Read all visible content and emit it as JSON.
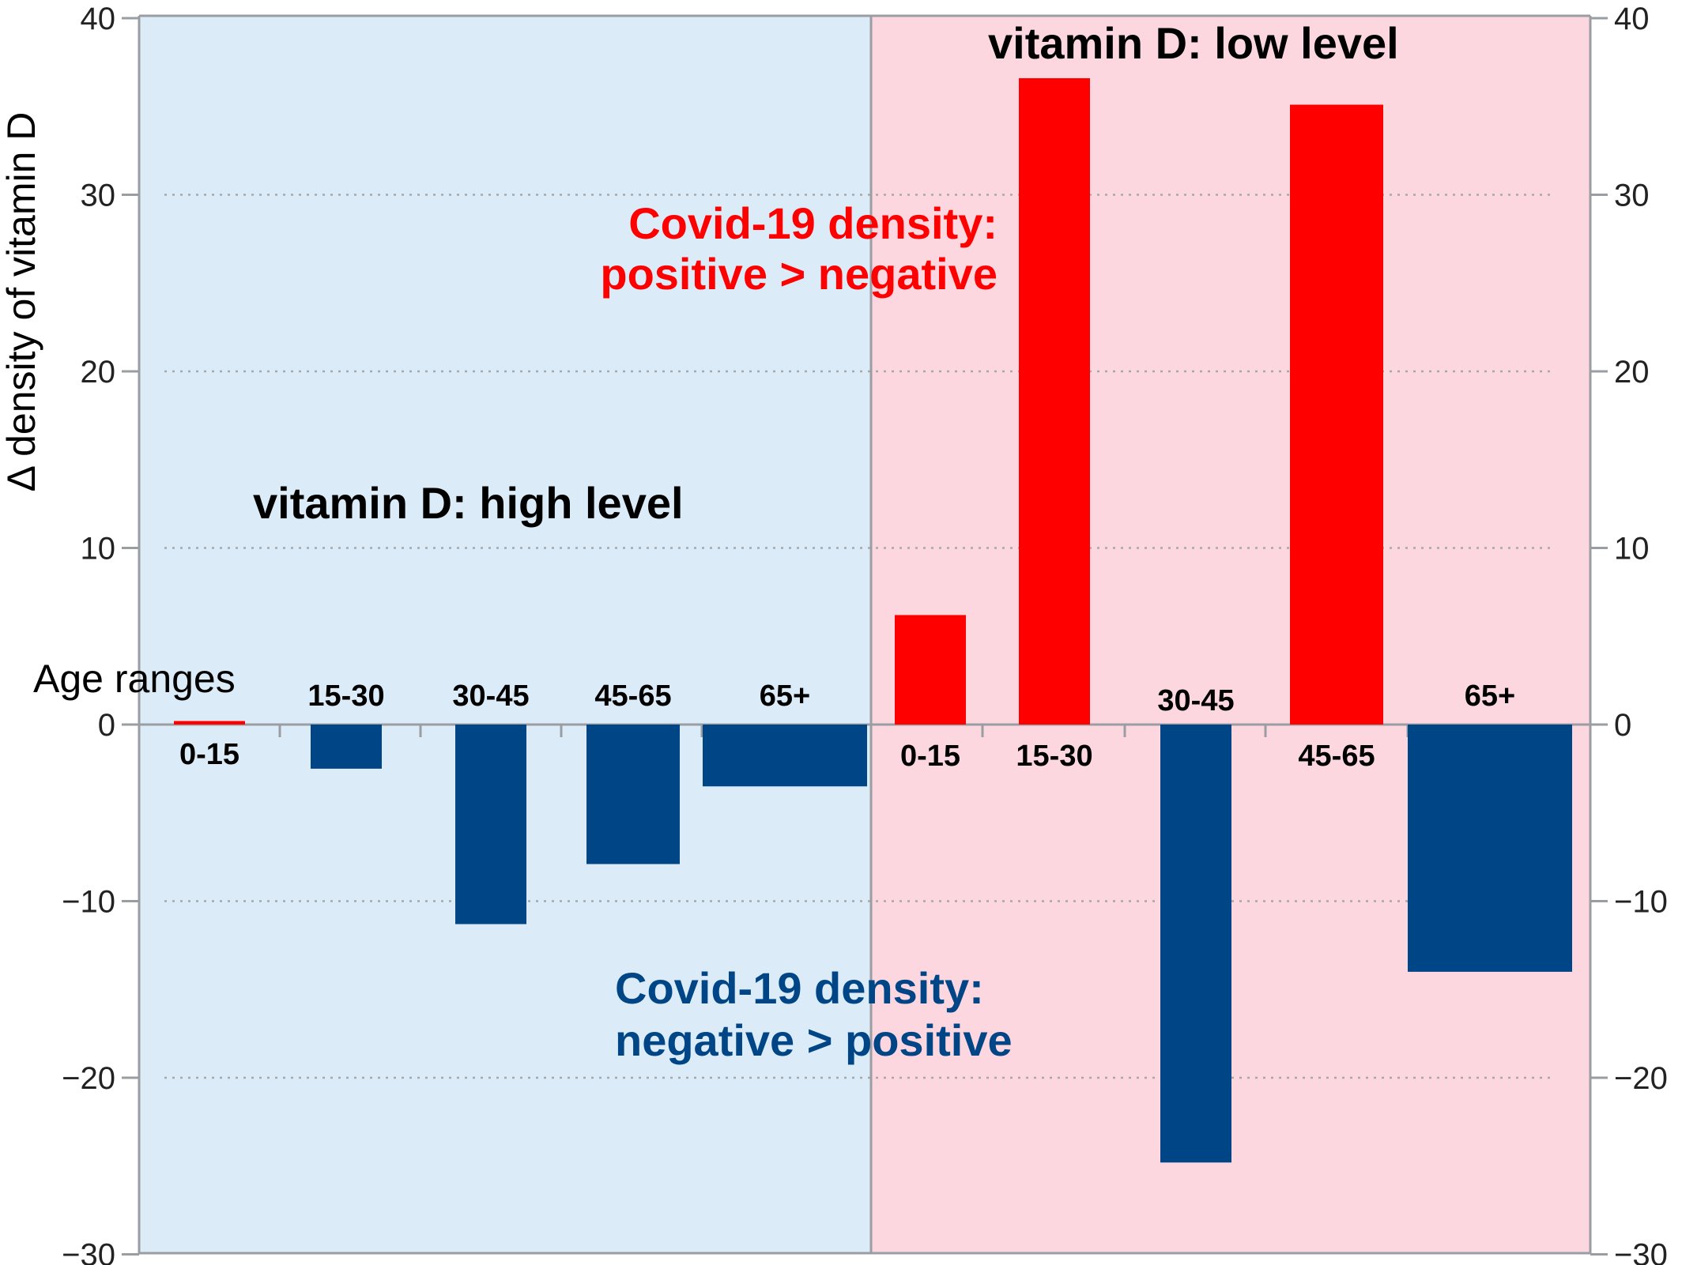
{
  "chart_data": {
    "type": "bar",
    "ylabel": "Δ density of vitamin D",
    "ylim": [
      -30,
      40
    ],
    "yticks": [
      40,
      30,
      20,
      10,
      0,
      -10,
      -20,
      -30
    ],
    "ytick_labels": [
      "40",
      "30",
      "20",
      "10",
      "0",
      "−10",
      "−20",
      "−30"
    ],
    "grid": "dotted horizontal",
    "category_axis_title": "Age ranges",
    "colors": {
      "positive": "#ff0000",
      "negative": "#004687",
      "high_region_bg": "#dbecf8",
      "low_region_bg": "#fcd7df",
      "axis": "#9a9ea3",
      "grid": "#a8a8a8"
    },
    "groups": [
      {
        "name": "vitamin D: high level",
        "bars": [
          {
            "category": "0-15",
            "value": 0.2
          },
          {
            "category": "15-30",
            "value": -2.5
          },
          {
            "category": "30-45",
            "value": -11.3
          },
          {
            "category": "45-65",
            "value": -7.9
          },
          {
            "category": "65+",
            "value": -3.5
          }
        ]
      },
      {
        "name": "vitamin D: low level",
        "bars": [
          {
            "category": "0-15",
            "value": 6.2
          },
          {
            "category": "15-30",
            "value": 36.6
          },
          {
            "category": "30-45",
            "value": -24.8
          },
          {
            "category": "45-65",
            "value": 35.1
          },
          {
            "category": "65+",
            "value": -14.0
          }
        ]
      }
    ],
    "annotations": {
      "positive_line1": "Covid-19 density:",
      "positive_line2": "positive > negative",
      "negative_line1": "Covid-19 density:",
      "negative_line2": "negative > positive"
    }
  }
}
